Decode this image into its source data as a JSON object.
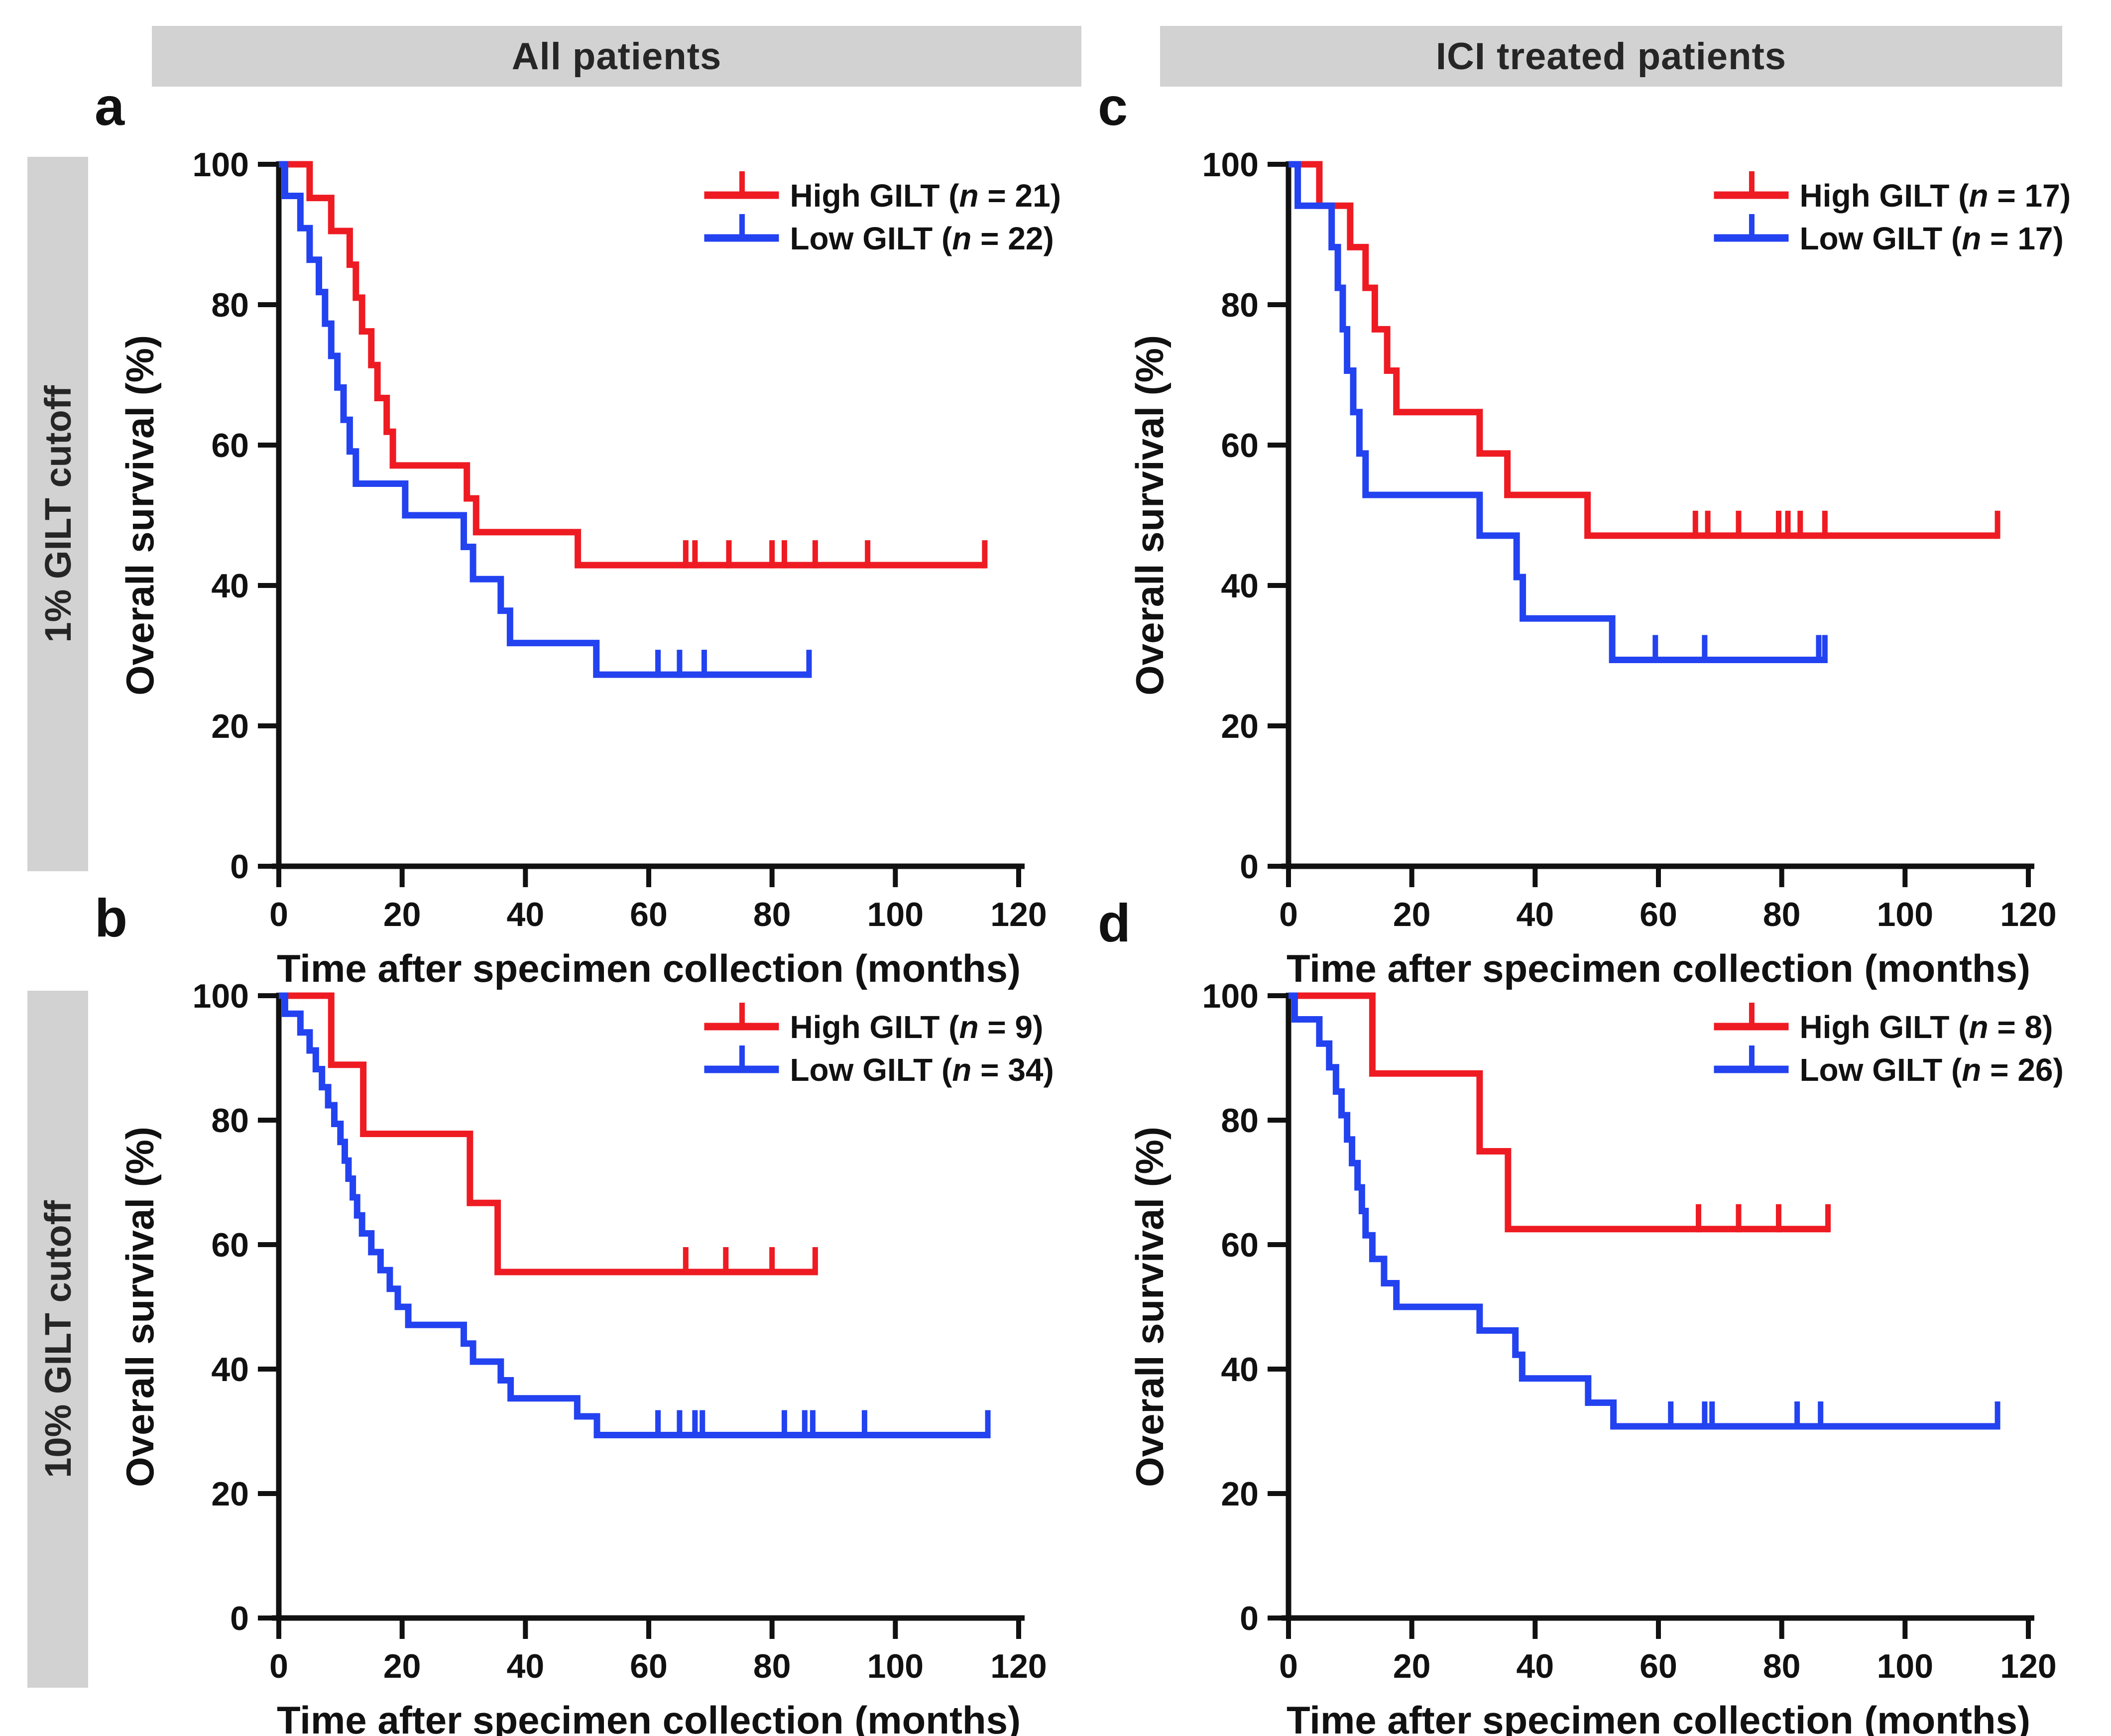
{
  "headers": {
    "col1": "All patients",
    "col2": "ICI treated patients",
    "row1": "1% GILT cutoff",
    "row2": "10% GILT cutoff"
  },
  "letters": {
    "a": "a",
    "b": "b",
    "c": "c",
    "d": "d"
  },
  "colors": {
    "high_gilt": "#ee1b23",
    "low_gilt": "#2342f0",
    "axis": "#111111",
    "band_background": "#d2d2d3",
    "band_text": "#262626"
  },
  "chart_data": [
    {
      "id": "a",
      "type": "line",
      "subtype": "kaplan-meier-step",
      "panel_letter": "a",
      "column": "All patients",
      "row": "1% GILT cutoff",
      "xlabel": "Time after specimen collection (months)",
      "ylabel": "Overall survival (%)",
      "xlim": [
        0,
        120
      ],
      "ylim": [
        0,
        100
      ],
      "xticks": [
        0,
        20,
        40,
        60,
        80,
        100,
        120
      ],
      "yticks": [
        0,
        20,
        40,
        60,
        80,
        100
      ],
      "grid": false,
      "legend_position": "top-right",
      "series": [
        {
          "key": "high",
          "name": "High GILT",
          "n": 21,
          "label": "High GILT (n = 21)",
          "color": "#ee1b23",
          "steps": [
            [
              0,
              100
            ],
            [
              5,
              95.2
            ],
            [
              8.5,
              90.5
            ],
            [
              11.5,
              85.7
            ],
            [
              12.5,
              81.0
            ],
            [
              13.5,
              76.2
            ],
            [
              15,
              71.4
            ],
            [
              16,
              66.7
            ],
            [
              17.5,
              61.9
            ],
            [
              18.5,
              57.1
            ],
            [
              30.5,
              52.4
            ],
            [
              32,
              47.6
            ],
            [
              48.5,
              42.9
            ]
          ],
          "end": 114.5,
          "censors": [
            66,
            67.5,
            73,
            80,
            82,
            87,
            95.5,
            114.5
          ]
        },
        {
          "key": "low",
          "name": "Low GILT",
          "n": 22,
          "label": "Low GILT (n = 22)",
          "color": "#2342f0",
          "steps": [
            [
              0,
              100
            ],
            [
              1,
              95.5
            ],
            [
              3.5,
              90.9
            ],
            [
              5,
              86.4
            ],
            [
              6.5,
              81.8
            ],
            [
              7.5,
              77.3
            ],
            [
              8.5,
              72.7
            ],
            [
              9.5,
              68.2
            ],
            [
              10.5,
              63.6
            ],
            [
              11.5,
              59.1
            ],
            [
              12.5,
              54.5
            ],
            [
              20.5,
              50.0
            ],
            [
              30,
              45.5
            ],
            [
              31.5,
              40.9
            ],
            [
              36,
              36.4
            ],
            [
              37.5,
              31.8
            ],
            [
              51.5,
              27.3
            ]
          ],
          "end": 86,
          "censors": [
            61.5,
            65,
            69,
            86
          ]
        }
      ]
    },
    {
      "id": "c",
      "type": "line",
      "subtype": "kaplan-meier-step",
      "panel_letter": "c",
      "column": "ICI treated patients",
      "row": "1% GILT cutoff",
      "xlabel": "Time after specimen collection (months)",
      "ylabel": "Overall survival (%)",
      "xlim": [
        0,
        120
      ],
      "ylim": [
        0,
        100
      ],
      "xticks": [
        0,
        20,
        40,
        60,
        80,
        100,
        120
      ],
      "yticks": [
        0,
        20,
        40,
        60,
        80,
        100
      ],
      "grid": false,
      "legend_position": "top-right",
      "series": [
        {
          "key": "high",
          "name": "High GILT",
          "n": 17,
          "label": "High GILT (n = 17)",
          "color": "#ee1b23",
          "steps": [
            [
              0,
              100
            ],
            [
              5,
              94.1
            ],
            [
              10,
              88.2
            ],
            [
              12.5,
              82.4
            ],
            [
              14,
              76.5
            ],
            [
              16,
              70.6
            ],
            [
              17.5,
              64.7
            ],
            [
              31,
              58.8
            ],
            [
              35.5,
              52.9
            ],
            [
              48.5,
              47.1
            ]
          ],
          "end": 115,
          "censors": [
            66,
            68,
            73,
            79.5,
            81,
            83,
            87,
            115
          ]
        },
        {
          "key": "low",
          "name": "Low GILT",
          "n": 17,
          "label": "Low GILT (n = 17)",
          "color": "#2342f0",
          "steps": [
            [
              0,
              100
            ],
            [
              1.5,
              94.1
            ],
            [
              7,
              88.2
            ],
            [
              8,
              82.4
            ],
            [
              8.8,
              76.5
            ],
            [
              9.5,
              70.6
            ],
            [
              10.5,
              64.7
            ],
            [
              11.5,
              58.8
            ],
            [
              12.5,
              52.9
            ],
            [
              31,
              47.1
            ],
            [
              37,
              41.2
            ],
            [
              38,
              35.3
            ],
            [
              52.5,
              29.4
            ]
          ],
          "end": 87,
          "censors": [
            59.5,
            67.5,
            86,
            87
          ]
        }
      ]
    },
    {
      "id": "b",
      "type": "line",
      "subtype": "kaplan-meier-step",
      "panel_letter": "b",
      "column": "All patients",
      "row": "10% GILT cutoff",
      "xlabel": "Time after specimen collection (months)",
      "ylabel": "Overall survival (%)",
      "xlim": [
        0,
        120
      ],
      "ylim": [
        0,
        100
      ],
      "xticks": [
        0,
        20,
        40,
        60,
        80,
        100,
        120
      ],
      "yticks": [
        0,
        20,
        40,
        60,
        80,
        100
      ],
      "grid": false,
      "legend_position": "top-right",
      "series": [
        {
          "key": "high",
          "name": "High GILT",
          "n": 9,
          "label": "High GILT (n = 9)",
          "color": "#ee1b23",
          "steps": [
            [
              0,
              100
            ],
            [
              8.5,
              88.9
            ],
            [
              13.7,
              77.8
            ],
            [
              31,
              66.7
            ],
            [
              35.5,
              55.6
            ]
          ],
          "end": 87,
          "censors": [
            66,
            72.5,
            80,
            87
          ]
        },
        {
          "key": "low",
          "name": "Low GILT",
          "n": 34,
          "label": "Low GILT (n = 34)",
          "color": "#2342f0",
          "steps": [
            [
              0,
              100
            ],
            [
              1,
              97.1
            ],
            [
              3.5,
              94.1
            ],
            [
              5,
              91.2
            ],
            [
              6,
              88.2
            ],
            [
              7,
              85.3
            ],
            [
              8,
              82.4
            ],
            [
              9,
              79.4
            ],
            [
              10,
              76.5
            ],
            [
              10.7,
              73.5
            ],
            [
              11.3,
              70.6
            ],
            [
              12,
              67.6
            ],
            [
              12.7,
              64.7
            ],
            [
              13.5,
              61.8
            ],
            [
              15,
              58.8
            ],
            [
              16.5,
              55.9
            ],
            [
              18,
              52.9
            ],
            [
              19.3,
              50.0
            ],
            [
              21,
              47.1
            ],
            [
              30,
              44.1
            ],
            [
              31.5,
              41.2
            ],
            [
              36,
              38.2
            ],
            [
              37.6,
              35.3
            ],
            [
              48.4,
              32.4
            ],
            [
              51.6,
              29.4
            ]
          ],
          "end": 115,
          "censors": [
            61.5,
            65,
            67.5,
            68.7,
            82,
            85.3,
            86.6,
            95,
            115
          ]
        }
      ]
    },
    {
      "id": "d",
      "type": "line",
      "subtype": "kaplan-meier-step",
      "panel_letter": "d",
      "column": "ICI treated patients",
      "row": "10% GILT cutoff",
      "xlabel": "Time after specimen collection (months)",
      "ylabel": "Overall survival (%)",
      "xlim": [
        0,
        120
      ],
      "ylim": [
        0,
        100
      ],
      "xticks": [
        0,
        20,
        40,
        60,
        80,
        100,
        120
      ],
      "yticks": [
        0,
        20,
        40,
        60,
        80,
        100
      ],
      "grid": false,
      "legend_position": "top-right",
      "series": [
        {
          "key": "high",
          "name": "High GILT",
          "n": 8,
          "label": "High GILT (n = 8)",
          "color": "#ee1b23",
          "steps": [
            [
              0,
              100
            ],
            [
              13.6,
              87.5
            ],
            [
              31,
              75.0
            ],
            [
              35.6,
              62.5
            ]
          ],
          "end": 87.5,
          "censors": [
            66.5,
            73,
            79.5,
            87.5
          ]
        },
        {
          "key": "low",
          "name": "Low GILT",
          "n": 26,
          "label": "Low GILT (n = 26)",
          "color": "#2342f0",
          "steps": [
            [
              0,
              100
            ],
            [
              1,
              96.2
            ],
            [
              5,
              92.3
            ],
            [
              6.6,
              88.5
            ],
            [
              7.7,
              84.6
            ],
            [
              8.6,
              80.8
            ],
            [
              9.5,
              76.9
            ],
            [
              10.3,
              73.1
            ],
            [
              11.2,
              69.2
            ],
            [
              11.9,
              65.4
            ],
            [
              12.5,
              61.5
            ],
            [
              13.6,
              57.7
            ],
            [
              15.5,
              53.8
            ],
            [
              17.5,
              50.0
            ],
            [
              31,
              46.2
            ],
            [
              36.8,
              42.3
            ],
            [
              37.9,
              38.5
            ],
            [
              48.6,
              34.6
            ],
            [
              52.7,
              30.8
            ]
          ],
          "end": 115,
          "censors": [
            62,
            67.5,
            68.7,
            82.5,
            86.3,
            115
          ]
        }
      ]
    }
  ]
}
